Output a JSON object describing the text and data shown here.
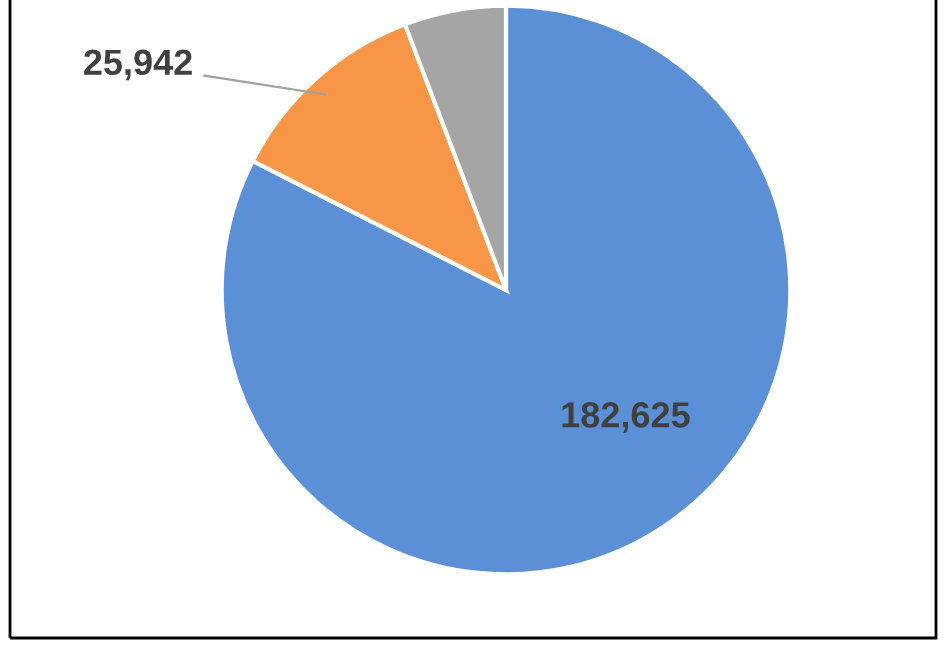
{
  "chart_data": {
    "type": "pie",
    "categories": [
      null,
      null,
      null
    ],
    "values": [
      182625,
      25942,
      12800
    ],
    "colors": [
      "#5b8fd6",
      "#f79646",
      "#a5a5a5"
    ],
    "value_labels": [
      "182,625",
      "25,942",
      null
    ],
    "legend": false
  }
}
